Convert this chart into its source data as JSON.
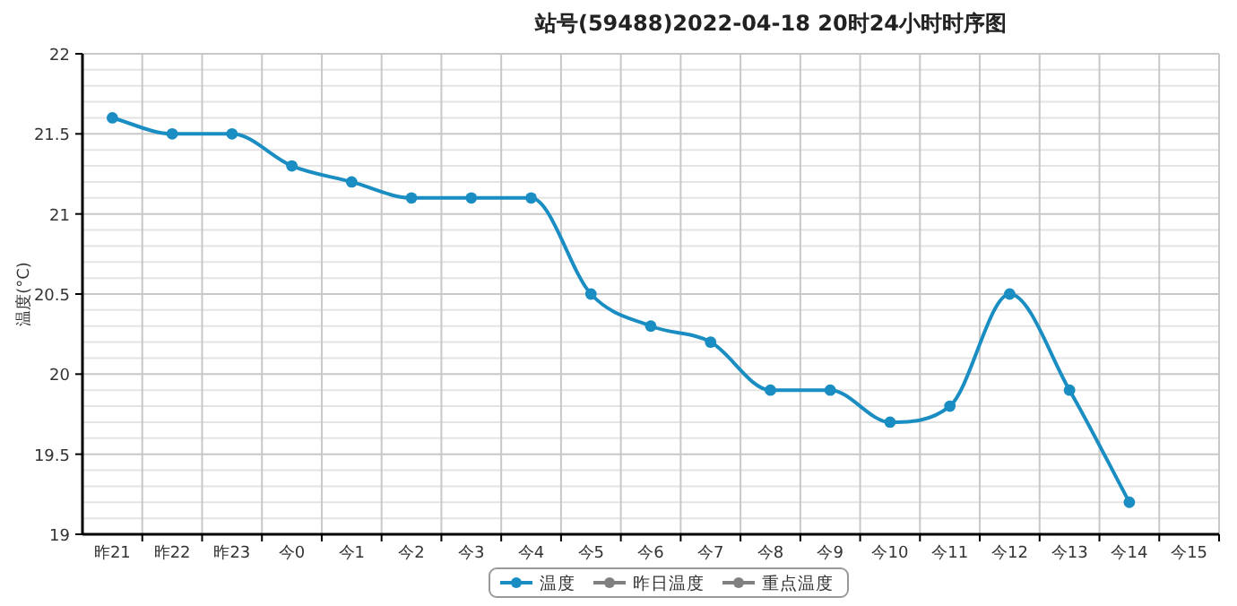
{
  "chart_data": {
    "type": "line",
    "title": "站号(59488)2022-04-18 20时24小时时序图",
    "ylabel": "温度(°C)",
    "categories": [
      "昨21",
      "昨22",
      "昨23",
      "今0",
      "今1",
      "今2",
      "今3",
      "今4",
      "今5",
      "今6",
      "今7",
      "今8",
      "今9",
      "今10",
      "今11",
      "今12",
      "今13",
      "今14",
      "今15"
    ],
    "series": [
      {
        "name": "温度",
        "color": "#1a8ec2",
        "values": [
          21.6,
          21.5,
          21.5,
          21.3,
          21.2,
          21.1,
          21.1,
          21.1,
          20.5,
          20.3,
          20.2,
          19.9,
          19.9,
          19.7,
          19.8,
          20.5,
          19.9,
          19.2,
          null
        ]
      },
      {
        "name": "昨日温度",
        "color": "#808080",
        "values": [
          null,
          null,
          null,
          null,
          null,
          null,
          null,
          null,
          null,
          null,
          null,
          null,
          null,
          null,
          null,
          null,
          null,
          null,
          null
        ]
      },
      {
        "name": "重点温度",
        "color": "#808080",
        "values": [
          null,
          null,
          null,
          null,
          null,
          null,
          null,
          null,
          null,
          null,
          null,
          null,
          null,
          null,
          null,
          null,
          null,
          null,
          null
        ]
      }
    ],
    "ylim": [
      19,
      22
    ],
    "yticks": [
      19,
      19.5,
      20,
      20.5,
      21,
      21.5,
      22
    ],
    "grid": true,
    "legend": "bottom",
    "marker": "circle",
    "line_style": "solid"
  }
}
